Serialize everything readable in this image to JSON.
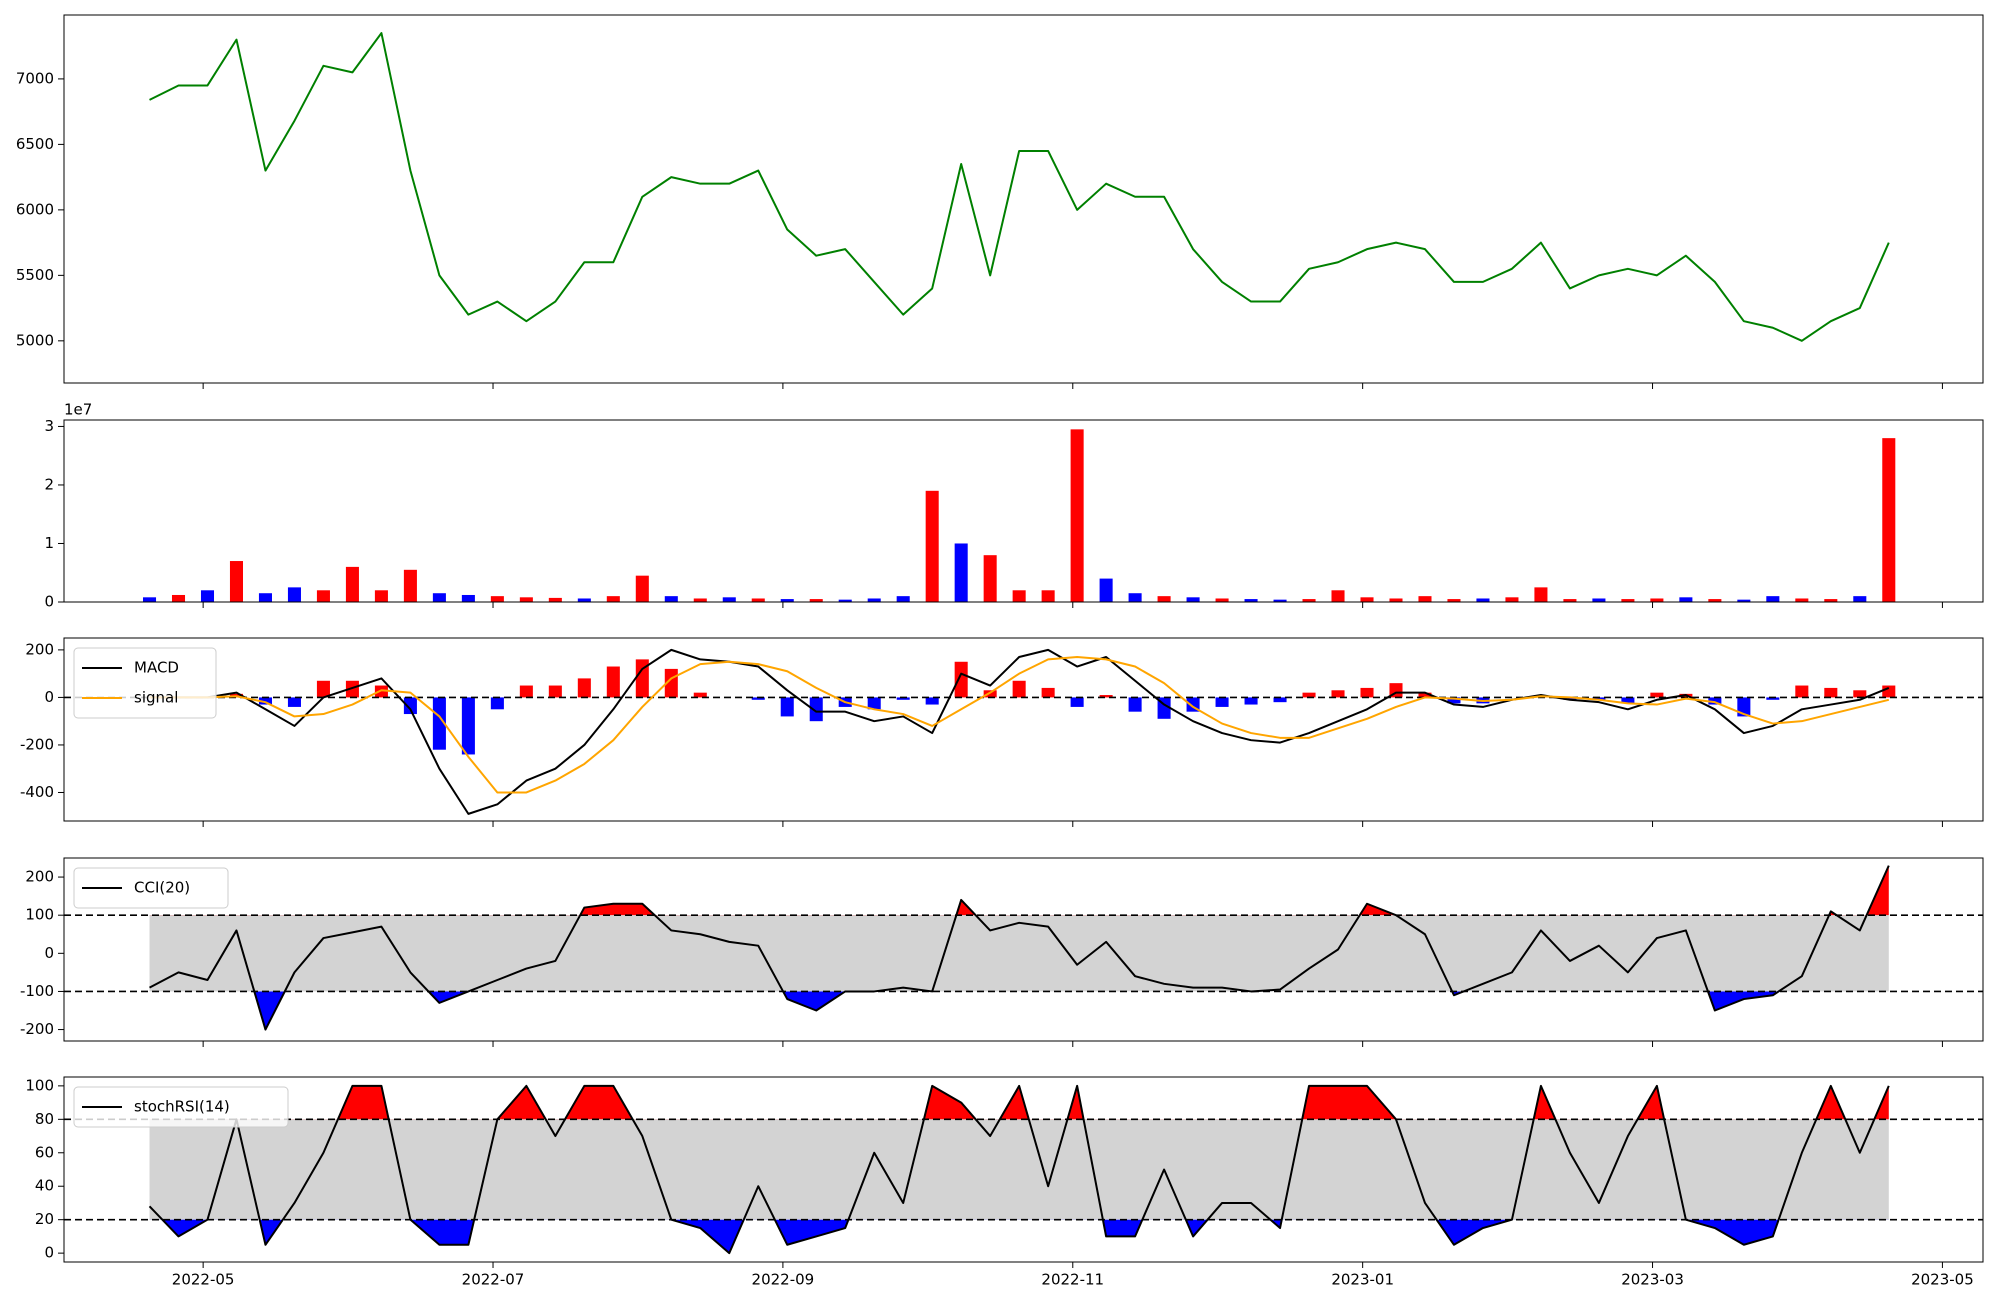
{
  "chart_data": {
    "type": "multi-panel",
    "x": [
      0.63,
      0.83,
      1.03,
      1.23,
      1.43,
      1.63,
      1.83,
      2.03,
      2.23,
      2.43,
      2.63,
      2.83,
      3.03,
      3.23,
      3.43,
      3.63,
      3.83,
      4.03,
      4.23,
      4.43,
      4.63,
      4.83,
      5.03,
      5.23,
      5.43,
      5.63,
      5.83,
      6.03,
      6.23,
      6.43,
      6.63,
      6.83,
      7.03,
      7.23,
      7.43,
      7.63,
      7.83,
      8.03,
      8.23,
      8.43,
      8.63,
      8.83,
      9.03,
      9.23,
      9.43,
      9.63,
      9.83,
      10.03,
      10.23,
      10.43,
      10.63,
      10.83,
      11.03,
      11.23,
      11.43,
      11.63,
      11.83,
      12.03,
      12.23,
      12.43,
      12.63
    ],
    "xlim": [
      0.04,
      13.28
    ],
    "xticks": [
      {
        "value": 1,
        "label": "2022-05"
      },
      {
        "value": 3,
        "label": "2022-07"
      },
      {
        "value": 5,
        "label": "2022-09"
      },
      {
        "value": 7,
        "label": "2022-11"
      },
      {
        "value": 9,
        "label": "2023-01"
      },
      {
        "value": 11,
        "label": "2023-03"
      },
      {
        "value": 13,
        "label": "2023-05"
      }
    ],
    "panels": [
      {
        "type": "line",
        "color": "green",
        "ylim": [
          4678,
          7488
        ],
        "yticks": [
          5000,
          5500,
          6000,
          6500,
          7000
        ],
        "values": [
          6840,
          6950,
          6950,
          7300,
          6300,
          6680,
          7100,
          7050,
          7350,
          6300,
          5500,
          5200,
          5300,
          5150,
          5300,
          5600,
          5600,
          6100,
          6250,
          6200,
          6200,
          6300,
          5850,
          5650,
          5700,
          5450,
          5200,
          5400,
          6350,
          5500,
          6450,
          6450,
          6000,
          6200,
          6100,
          6100,
          5700,
          5450,
          5300,
          5300,
          5550,
          5600,
          5700,
          5750,
          5700,
          5450,
          5450,
          5550,
          5750,
          5400,
          5500,
          5550,
          5500,
          5650,
          5450,
          5150,
          5100,
          5000,
          5150,
          5250,
          5750
        ]
      },
      {
        "type": "bar",
        "offset_label": "1e7",
        "ylim": [
          0,
          3.11
        ],
        "yticks": [
          0,
          1,
          2,
          3
        ],
        "values": [
          0.08,
          0.12,
          0.2,
          0.7,
          0.15,
          0.25,
          0.2,
          0.6,
          0.2,
          0.55,
          0.15,
          0.12,
          0.1,
          0.08,
          0.07,
          0.06,
          0.1,
          0.45,
          0.1,
          0.06,
          0.08,
          0.06,
          0.05,
          0.05,
          0.04,
          0.06,
          0.1,
          1.9,
          1.0,
          0.8,
          0.2,
          0.2,
          2.95,
          0.4,
          0.15,
          0.1,
          0.08,
          0.06,
          0.05,
          0.04,
          0.05,
          0.2,
          0.08,
          0.06,
          0.1,
          0.05,
          0.06,
          0.08,
          0.25,
          0.05,
          0.06,
          0.05,
          0.06,
          0.08,
          0.05,
          0.04,
          0.1,
          0.06,
          0.05,
          0.1,
          2.8
        ],
        "colors": [
          "blue",
          "red",
          "blue",
          "red",
          "blue",
          "blue",
          "red",
          "red",
          "red",
          "red",
          "blue",
          "blue",
          "red",
          "red",
          "red",
          "blue",
          "red",
          "red",
          "blue",
          "red",
          "blue",
          "red",
          "blue",
          "red",
          "blue",
          "blue",
          "blue",
          "red",
          "blue",
          "red",
          "red",
          "red",
          "red",
          "blue",
          "blue",
          "red",
          "blue",
          "red",
          "blue",
          "blue",
          "red",
          "red",
          "red",
          "red",
          "red",
          "red",
          "blue",
          "red",
          "red",
          "red",
          "blue",
          "red",
          "red",
          "blue",
          "red",
          "blue",
          "blue",
          "red",
          "red",
          "blue",
          "red"
        ]
      },
      {
        "type": "macd",
        "ylim": [
          -520,
          250
        ],
        "yticks": [
          -400,
          -200,
          0,
          200
        ],
        "hline": 0,
        "legend": "upper left",
        "series": [
          {
            "name": "MACD",
            "color": "black",
            "values": [
              0,
              0,
              0,
              20,
              -50,
              -120,
              0,
              40,
              80,
              -50,
              -300,
              -490,
              -450,
              -350,
              -300,
              -200,
              -50,
              120,
              200,
              160,
              150,
              130,
              30,
              -60,
              -60,
              -100,
              -80,
              -150,
              100,
              50,
              170,
              200,
              130,
              170,
              70,
              -30,
              -100,
              -150,
              -180,
              -190,
              -150,
              -100,
              -50,
              20,
              20,
              -30,
              -40,
              -10,
              10,
              -10,
              -20,
              -50,
              -10,
              10,
              -50,
              -150,
              -120,
              -50,
              -30,
              -10,
              40
            ]
          },
          {
            "name": "signal",
            "color": "orange",
            "values": [
              0,
              0,
              0,
              5,
              -20,
              -80,
              -70,
              -30,
              30,
              20,
              -80,
              -250,
              -400,
              -400,
              -350,
              -280,
              -180,
              -40,
              80,
              140,
              150,
              140,
              110,
              40,
              -20,
              -50,
              -70,
              -120,
              -50,
              20,
              100,
              160,
              170,
              160,
              130,
              60,
              -40,
              -110,
              -150,
              -170,
              -170,
              -130,
              -90,
              -40,
              0,
              -5,
              -15,
              -10,
              5,
              0,
              -10,
              -25,
              -30,
              -5,
              -20,
              -70,
              -110,
              -100,
              -70,
              -40,
              -10
            ]
          }
        ],
        "histogram": {
          "pos_color": "red",
          "neg_color": "blue",
          "values": [
            0,
            0,
            0,
            15,
            -30,
            -40,
            70,
            70,
            50,
            -70,
            -220,
            -240,
            -50,
            50,
            50,
            80,
            130,
            160,
            120,
            20,
            0,
            -10,
            -80,
            -100,
            -40,
            -50,
            -10,
            -30,
            150,
            30,
            70,
            40,
            -40,
            10,
            -60,
            -90,
            -60,
            -40,
            -30,
            -20,
            20,
            30,
            40,
            60,
            20,
            -25,
            -25,
            0,
            5,
            -10,
            -10,
            -25,
            20,
            15,
            -30,
            -80,
            -10,
            50,
            40,
            30,
            50
          ]
        }
      },
      {
        "type": "band",
        "ylim": [
          -230,
          250
        ],
        "yticks": [
          -200,
          -100,
          0,
          100,
          200
        ],
        "thresholds": [
          -100,
          100
        ],
        "band_color": "lightgray",
        "lower_color": "blue",
        "upper_color": "red",
        "legend": "upper left",
        "series": [
          {
            "name": "CCI(20)",
            "color": "black",
            "values": [
              -90,
              -50,
              -70,
              60,
              -200,
              -50,
              40,
              55,
              70,
              -50,
              -130,
              -100,
              -70,
              -40,
              -20,
              120,
              130,
              130,
              60,
              50,
              30,
              20,
              -120,
              -150,
              -100,
              -100,
              -90,
              -100,
              140,
              60,
              80,
              70,
              -30,
              30,
              -60,
              -80,
              -90,
              -90,
              -100,
              -95,
              -40,
              10,
              130,
              100,
              50,
              -110,
              -80,
              -50,
              60,
              -20,
              20,
              -50,
              40,
              60,
              -150,
              -120,
              -110,
              -60,
              110,
              60,
              230
            ]
          }
        ]
      },
      {
        "type": "band",
        "ylim": [
          -5.3,
          105.3
        ],
        "yticks": [
          0,
          20,
          40,
          60,
          80,
          100
        ],
        "thresholds": [
          20,
          80
        ],
        "band_color": "lightgray",
        "lower_color": "blue",
        "upper_color": "red",
        "legend": "upper left",
        "series": [
          {
            "name": "stochRSI(14)",
            "color": "black",
            "values": [
              28,
              10,
              20,
              80,
              5,
              30,
              60,
              100,
              100,
              20,
              5,
              5,
              80,
              100,
              70,
              100,
              100,
              70,
              20,
              15,
              0,
              40,
              5,
              10,
              15,
              60,
              30,
              100,
              90,
              70,
              100,
              40,
              100,
              10,
              10,
              50,
              10,
              30,
              30,
              15,
              100,
              100,
              100,
              80,
              30,
              5,
              15,
              20,
              100,
              60,
              30,
              70,
              100,
              20,
              15,
              5,
              10,
              60,
              100,
              60,
              100
            ]
          }
        ]
      }
    ]
  }
}
